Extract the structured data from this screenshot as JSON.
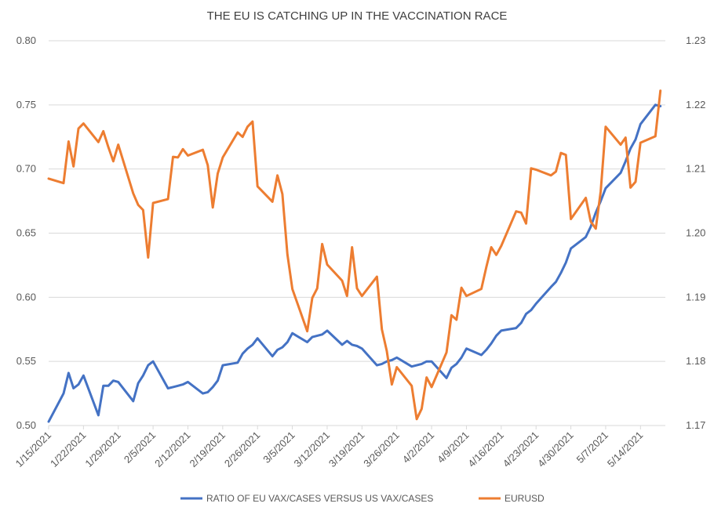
{
  "chart_data": {
    "type": "line",
    "title": "THE EU IS CATCHING UP IN THE VACCINATION RACE",
    "x_start": "1/15/2021",
    "x_end": "5/19/2021",
    "x_tick_labels": [
      "1/15/2021",
      "1/22/2021",
      "1/29/2021",
      "2/5/2021",
      "2/12/2021",
      "2/19/2021",
      "2/26/2021",
      "3/5/2021",
      "3/12/2021",
      "3/19/2021",
      "3/26/2021",
      "4/2/2021",
      "4/9/2021",
      "4/16/2021",
      "4/23/2021",
      "4/30/2021",
      "5/7/2021",
      "5/14/2021"
    ],
    "y_left": {
      "min": 0.5,
      "max": 0.8,
      "ticks": [
        "0.50",
        "0.55",
        "0.60",
        "0.65",
        "0.70",
        "0.75",
        "0.80"
      ]
    },
    "y_right": {
      "min": 1.17,
      "max": 1.23,
      "ticks": [
        "1.17",
        "1.18",
        "1.19",
        "1.20",
        "1.21",
        "1.22",
        "1.23"
      ]
    },
    "grid": true,
    "legend_position": "bottom",
    "series": [
      {
        "name": "RATIO OF EU VAX/CASES VERSUS US VAX/CASES",
        "axis": "left",
        "color": "#4472C4",
        "points": [
          [
            "1/15/2021",
            0.503
          ],
          [
            "1/18/2021",
            0.525
          ],
          [
            "1/19/2021",
            0.541
          ],
          [
            "1/20/2021",
            0.529
          ],
          [
            "1/21/2021",
            0.532
          ],
          [
            "1/22/2021",
            0.539
          ],
          [
            "1/25/2021",
            0.508
          ],
          [
            "1/26/2021",
            0.531
          ],
          [
            "1/27/2021",
            0.531
          ],
          [
            "1/28/2021",
            0.535
          ],
          [
            "1/29/2021",
            0.534
          ],
          [
            "2/1/2021",
            0.519
          ],
          [
            "2/2/2021",
            0.533
          ],
          [
            "2/3/2021",
            0.539
          ],
          [
            "2/4/2021",
            0.547
          ],
          [
            "2/5/2021",
            0.55
          ],
          [
            "2/8/2021",
            0.529
          ],
          [
            "2/9/2021",
            0.53
          ],
          [
            "2/10/2021",
            0.531
          ],
          [
            "2/11/2021",
            0.532
          ],
          [
            "2/12/2021",
            0.534
          ],
          [
            "2/15/2021",
            0.525
          ],
          [
            "2/16/2021",
            0.526
          ],
          [
            "2/17/2021",
            0.53
          ],
          [
            "2/18/2021",
            0.535
          ],
          [
            "2/19/2021",
            0.547
          ],
          [
            "2/22/2021",
            0.549
          ],
          [
            "2/23/2021",
            0.556
          ],
          [
            "2/24/2021",
            0.56
          ],
          [
            "2/25/2021",
            0.563
          ],
          [
            "2/26/2021",
            0.568
          ],
          [
            "3/1/2021",
            0.554
          ],
          [
            "3/2/2021",
            0.559
          ],
          [
            "3/3/2021",
            0.561
          ],
          [
            "3/4/2021",
            0.565
          ],
          [
            "3/5/2021",
            0.572
          ],
          [
            "3/8/2021",
            0.565
          ],
          [
            "3/9/2021",
            0.569
          ],
          [
            "3/10/2021",
            0.57
          ],
          [
            "3/11/2021",
            0.571
          ],
          [
            "3/12/2021",
            0.574
          ],
          [
            "3/15/2021",
            0.563
          ],
          [
            "3/16/2021",
            0.566
          ],
          [
            "3/17/2021",
            0.563
          ],
          [
            "3/18/2021",
            0.562
          ],
          [
            "3/19/2021",
            0.56
          ],
          [
            "3/22/2021",
            0.547
          ],
          [
            "3/23/2021",
            0.548
          ],
          [
            "3/24/2021",
            0.55
          ],
          [
            "3/25/2021",
            0.551
          ],
          [
            "3/26/2021",
            0.553
          ],
          [
            "3/29/2021",
            0.546
          ],
          [
            "3/30/2021",
            0.547
          ],
          [
            "3/31/2021",
            0.548
          ],
          [
            "4/1/2021",
            0.55
          ],
          [
            "4/2/2021",
            0.55
          ],
          [
            "4/5/2021",
            0.537
          ],
          [
            "4/6/2021",
            0.545
          ],
          [
            "4/7/2021",
            0.548
          ],
          [
            "4/8/2021",
            0.553
          ],
          [
            "4/9/2021",
            0.56
          ],
          [
            "4/12/2021",
            0.555
          ],
          [
            "4/13/2021",
            0.559
          ],
          [
            "4/14/2021",
            0.564
          ],
          [
            "4/15/2021",
            0.57
          ],
          [
            "4/16/2021",
            0.574
          ],
          [
            "4/19/2021",
            0.576
          ],
          [
            "4/20/2021",
            0.58
          ],
          [
            "4/21/2021",
            0.587
          ],
          [
            "4/22/2021",
            0.59
          ],
          [
            "4/23/2021",
            0.595
          ],
          [
            "4/26/2021",
            0.608
          ],
          [
            "4/27/2021",
            0.612
          ],
          [
            "4/28/2021",
            0.619
          ],
          [
            "4/29/2021",
            0.627
          ],
          [
            "4/30/2021",
            0.638
          ],
          [
            "5/3/2021",
            0.647
          ],
          [
            "5/4/2021",
            0.655
          ],
          [
            "5/5/2021",
            0.666
          ],
          [
            "5/6/2021",
            0.675
          ],
          [
            "5/7/2021",
            0.685
          ],
          [
            "5/10/2021",
            0.697
          ],
          [
            "5/11/2021",
            0.706
          ],
          [
            "5/12/2021",
            0.716
          ],
          [
            "5/13/2021",
            0.723
          ],
          [
            "5/14/2021",
            0.735
          ],
          [
            "5/17/2021",
            0.75
          ],
          [
            "5/18/2021",
            0.749
          ]
        ]
      },
      {
        "name": "EURUSD",
        "axis": "right",
        "color": "#ED7D31",
        "points": [
          [
            "1/15/2021",
            1.2085
          ],
          [
            "1/18/2021",
            1.2078
          ],
          [
            "1/19/2021",
            1.2143
          ],
          [
            "1/20/2021",
            1.2104
          ],
          [
            "1/21/2021",
            1.2163
          ],
          [
            "1/22/2021",
            1.2171
          ],
          [
            "1/25/2021",
            1.2142
          ],
          [
            "1/26/2021",
            1.2159
          ],
          [
            "1/27/2021",
            1.2134
          ],
          [
            "1/28/2021",
            1.2112
          ],
          [
            "1/29/2021",
            1.2138
          ],
          [
            "2/1/2021",
            1.2062
          ],
          [
            "2/2/2021",
            1.2044
          ],
          [
            "2/3/2021",
            1.2036
          ],
          [
            "2/4/2021",
            1.1962
          ],
          [
            "2/5/2021",
            1.2047
          ],
          [
            "2/8/2021",
            1.2053
          ],
          [
            "2/9/2021",
            1.2119
          ],
          [
            "2/10/2021",
            1.2118
          ],
          [
            "2/11/2021",
            1.2131
          ],
          [
            "2/12/2021",
            1.2121
          ],
          [
            "2/15/2021",
            1.213
          ],
          [
            "2/16/2021",
            1.2106
          ],
          [
            "2/17/2021",
            1.204
          ],
          [
            "2/18/2021",
            1.2093
          ],
          [
            "2/19/2021",
            1.2118
          ],
          [
            "2/22/2021",
            1.2157
          ],
          [
            "2/23/2021",
            1.215
          ],
          [
            "2/24/2021",
            1.2166
          ],
          [
            "2/25/2021",
            1.2174
          ],
          [
            "2/26/2021",
            1.2073
          ],
          [
            "3/1/2021",
            1.2049
          ],
          [
            "3/2/2021",
            1.209
          ],
          [
            "3/3/2021",
            1.2061
          ],
          [
            "3/4/2021",
            1.1967
          ],
          [
            "3/5/2021",
            1.1913
          ],
          [
            "3/8/2021",
            1.1847
          ],
          [
            "3/9/2021",
            1.1899
          ],
          [
            "3/10/2021",
            1.1914
          ],
          [
            "3/11/2021",
            1.1983
          ],
          [
            "3/12/2021",
            1.1951
          ],
          [
            "3/15/2021",
            1.1926
          ],
          [
            "3/16/2021",
            1.1902
          ],
          [
            "3/17/2021",
            1.1978
          ],
          [
            "3/18/2021",
            1.1914
          ],
          [
            "3/19/2021",
            1.1902
          ],
          [
            "3/22/2021",
            1.1932
          ],
          [
            "3/23/2021",
            1.185
          ],
          [
            "3/24/2021",
            1.1816
          ],
          [
            "3/25/2021",
            1.1764
          ],
          [
            "3/26/2021",
            1.1791
          ],
          [
            "3/29/2021",
            1.1762
          ],
          [
            "3/30/2021",
            1.171
          ],
          [
            "3/31/2021",
            1.1726
          ],
          [
            "4/1/2021",
            1.1775
          ],
          [
            "4/2/2021",
            1.176
          ],
          [
            "4/5/2021",
            1.1814
          ],
          [
            "4/6/2021",
            1.1872
          ],
          [
            "4/7/2021",
            1.1865
          ],
          [
            "4/8/2021",
            1.1915
          ],
          [
            "4/9/2021",
            1.1902
          ],
          [
            "4/12/2021",
            1.1913
          ],
          [
            "4/13/2021",
            1.1947
          ],
          [
            "4/14/2021",
            1.1978
          ],
          [
            "4/15/2021",
            1.1966
          ],
          [
            "4/16/2021",
            1.198
          ],
          [
            "4/19/2021",
            1.2034
          ],
          [
            "4/20/2021",
            1.2032
          ],
          [
            "4/21/2021",
            1.2015
          ],
          [
            "4/22/2021",
            1.2101
          ],
          [
            "4/23/2021",
            1.2099
          ],
          [
            "4/26/2021",
            1.209
          ],
          [
            "4/27/2021",
            1.2096
          ],
          [
            "4/28/2021",
            1.2125
          ],
          [
            "4/29/2021",
            1.2122
          ],
          [
            "4/30/2021",
            1.2022
          ],
          [
            "5/3/2021",
            1.2055
          ],
          [
            "5/4/2021",
            1.2018
          ],
          [
            "5/5/2021",
            1.2007
          ],
          [
            "5/6/2021",
            1.2065
          ],
          [
            "5/7/2021",
            1.2166
          ],
          [
            "5/10/2021",
            1.2138
          ],
          [
            "5/11/2021",
            1.2149
          ],
          [
            "5/12/2021",
            1.2071
          ],
          [
            "5/13/2021",
            1.208
          ],
          [
            "5/14/2021",
            1.2141
          ],
          [
            "5/17/2021",
            1.2151
          ],
          [
            "5/18/2021",
            1.2222
          ]
        ]
      }
    ]
  }
}
